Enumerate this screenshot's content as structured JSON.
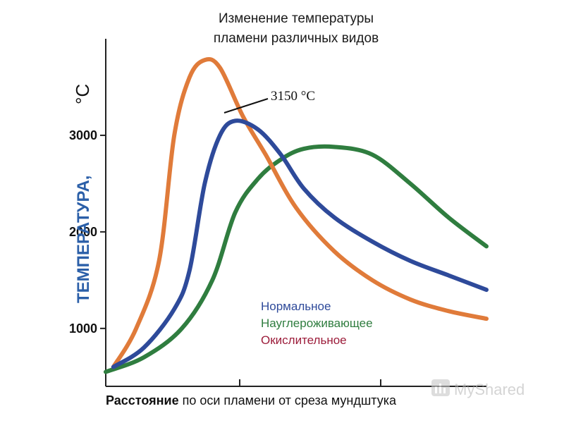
{
  "chart_data": {
    "type": "line",
    "title": [
      "Изменение температуры",
      "пламени различных видов"
    ],
    "xlabel_bold": "Расстояние",
    "xlabel_rest": " по оси пламени от среза мундштука",
    "ylabel": "ТЕМПЕРАТУРА,",
    "yunit": "°С",
    "yticks": [
      "1000",
      "2000",
      "3000"
    ],
    "ylim": [
      400,
      4000
    ],
    "xlim": [
      0,
      10
    ],
    "annotation": {
      "text": "3150 °С"
    },
    "series": [
      {
        "name": "Нормальное",
        "color": "#2e4a9a",
        "x": [
          0.2,
          1.0,
          1.8,
          2.2,
          2.6,
          3.0,
          3.4,
          4.0,
          4.6,
          5.2,
          6.0,
          7.0,
          8.0,
          9.0,
          10.0
        ],
        "y": [
          600,
          800,
          1200,
          1600,
          2500,
          3000,
          3150,
          3060,
          2800,
          2450,
          2150,
          1900,
          1700,
          1550,
          1400
        ]
      },
      {
        "name": "Науглероживающее",
        "color": "#2f7d3f",
        "x": [
          0.0,
          1.0,
          2.0,
          2.8,
          3.4,
          4.0,
          4.6,
          5.2,
          6.0,
          7.0,
          8.0,
          9.0,
          10.0
        ],
        "y": [
          550,
          700,
          1000,
          1500,
          2200,
          2550,
          2750,
          2860,
          2880,
          2800,
          2500,
          2150,
          1850
        ]
      },
      {
        "name": "Окислительное",
        "color": "#e07b3a",
        "x": [
          0.2,
          0.8,
          1.4,
          1.8,
          2.2,
          2.6,
          3.0,
          3.6,
          4.2,
          5.0,
          6.0,
          7.0,
          8.0,
          9.0,
          10.0
        ],
        "y": [
          600,
          1000,
          1700,
          3000,
          3600,
          3780,
          3700,
          3200,
          2800,
          2250,
          1800,
          1500,
          1300,
          1180,
          1100
        ]
      }
    ],
    "legend_colors": [
      "#2e4a9a",
      "#2f7d3f",
      "#9c1c3a"
    ]
  },
  "watermark": "MyShared"
}
